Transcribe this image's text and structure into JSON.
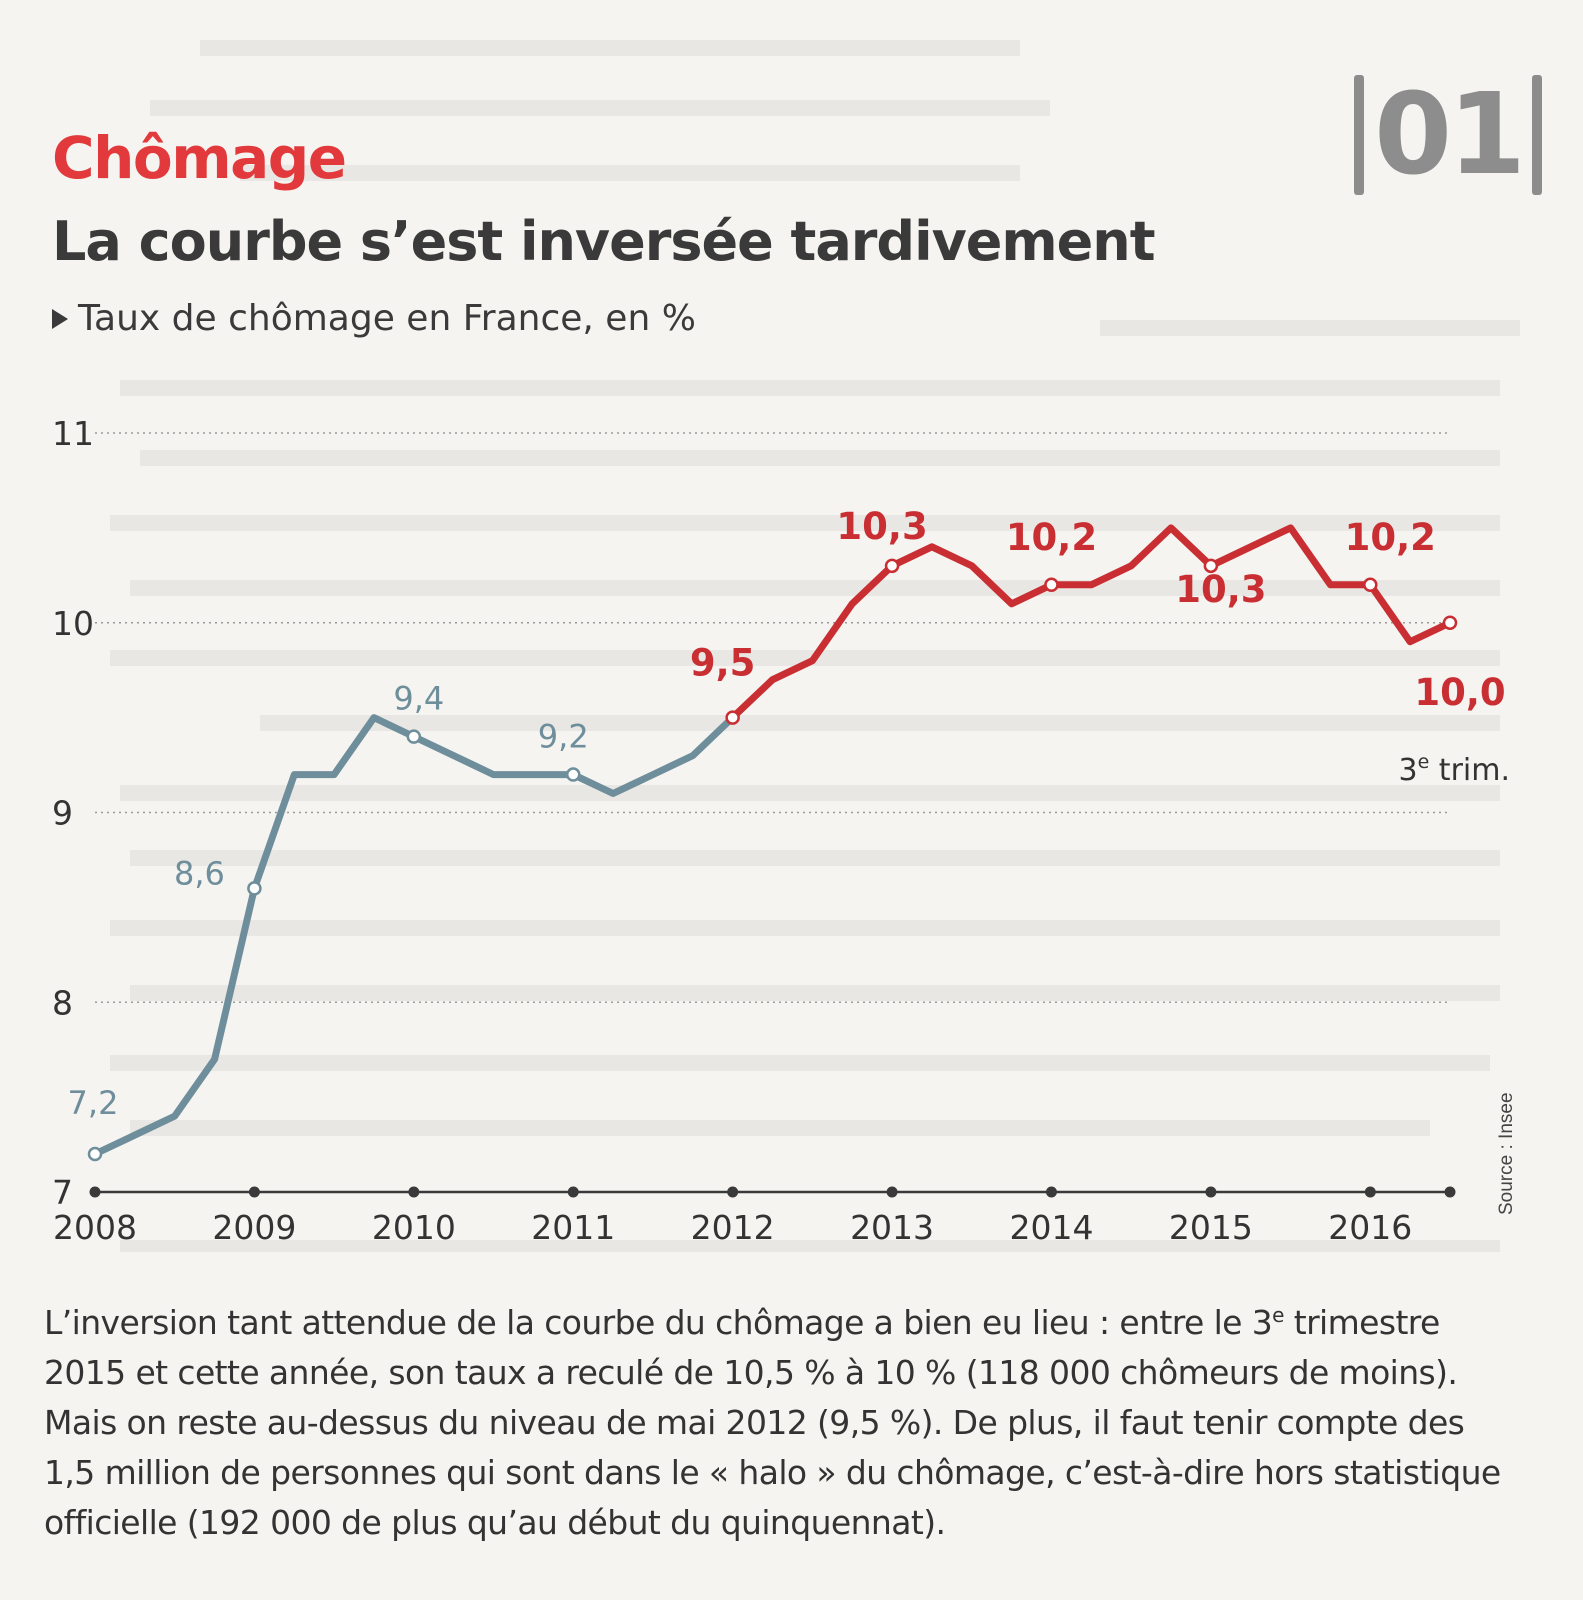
{
  "badge": {
    "number": "01"
  },
  "header": {
    "kicker": "Chômage",
    "headline": "La courbe s’est inversée tardivement",
    "subtitle": "Taux de chômage en France, en %"
  },
  "source": "Source : Insee",
  "caption": {
    "part1": "L’inversion tant attendue de la courbe du chômage a bien eu lieu : entre le 3",
    "sup": "e",
    "part2": " tri­mestre 2015 et cette année, son taux a reculé de 10,5 % à 10 % (118 000 chômeurs de moins). Mais on reste au-dessus du niveau de mai 2012 (9,5 %). De plus, il faut tenir compte des 1,5 million de personnes qui sont dans le « halo » du chômage, c’est-à-dire hors statistique officielle (192 000 de plus qu’au début du quinquennat)."
  },
  "colors": {
    "before": "#6f8e9c",
    "after": "#c92e32",
    "grid": "#9a9a9a",
    "axis": "#3a3a3a"
  },
  "chart_data": {
    "type": "line",
    "title": "Taux de chômage en France, en %",
    "xlabel": "",
    "ylabel": "",
    "ylim": [
      7,
      11
    ],
    "yticks": [
      "7",
      "8",
      "9",
      "10",
      "11"
    ],
    "xticks": [
      "2008",
      "2009",
      "2010",
      "2011",
      "2012",
      "2013",
      "2014",
      "2015",
      "2016"
    ],
    "grid": true,
    "end_note": "3e trim.",
    "x": [
      "2008",
      "2008.25",
      "2008.5",
      "2008.75",
      "2009",
      "2009.25",
      "2009.5",
      "2009.75",
      "2010",
      "2010.25",
      "2010.5",
      "2010.75",
      "2011",
      "2011.25",
      "2011.5",
      "2011.75",
      "2012",
      "2012.25",
      "2012.5",
      "2012.75",
      "2013",
      "2013.25",
      "2013.5",
      "2013.75",
      "2014",
      "2014.25",
      "2014.5",
      "2014.75",
      "2015",
      "2015.25",
      "2015.5",
      "2015.75",
      "2016",
      "2016.25",
      "2016.5"
    ],
    "series": [
      {
        "values": [
          7.2,
          7.3,
          7.4,
          7.7,
          8.6,
          9.2,
          9.2,
          9.5,
          9.4,
          9.3,
          9.2,
          9.2,
          9.2,
          9.1,
          9.2,
          9.3,
          9.5,
          9.7,
          9.8,
          10.1,
          10.3,
          10.4,
          10.3,
          10.1,
          10.2,
          10.2,
          10.3,
          10.5,
          10.3,
          10.4,
          10.5,
          10.2,
          10.2,
          9.9,
          10.0
        ],
        "labels": [
          {
            "x": "2008",
            "text": "7,2"
          },
          {
            "x": "2009",
            "text": "8,6"
          },
          {
            "x": "2010",
            "text": "9,4"
          },
          {
            "x": "2011",
            "text": "9,2"
          },
          {
            "x": "2012",
            "text": "9,5"
          },
          {
            "x": "2013",
            "text": "10,3"
          },
          {
            "x": "2014",
            "text": "10,2"
          },
          {
            "x": "2015",
            "text": "10,3"
          },
          {
            "x": "2016",
            "text": "10,2"
          },
          {
            "x": "2016.5",
            "text": "10,0"
          }
        ]
      }
    ]
  }
}
